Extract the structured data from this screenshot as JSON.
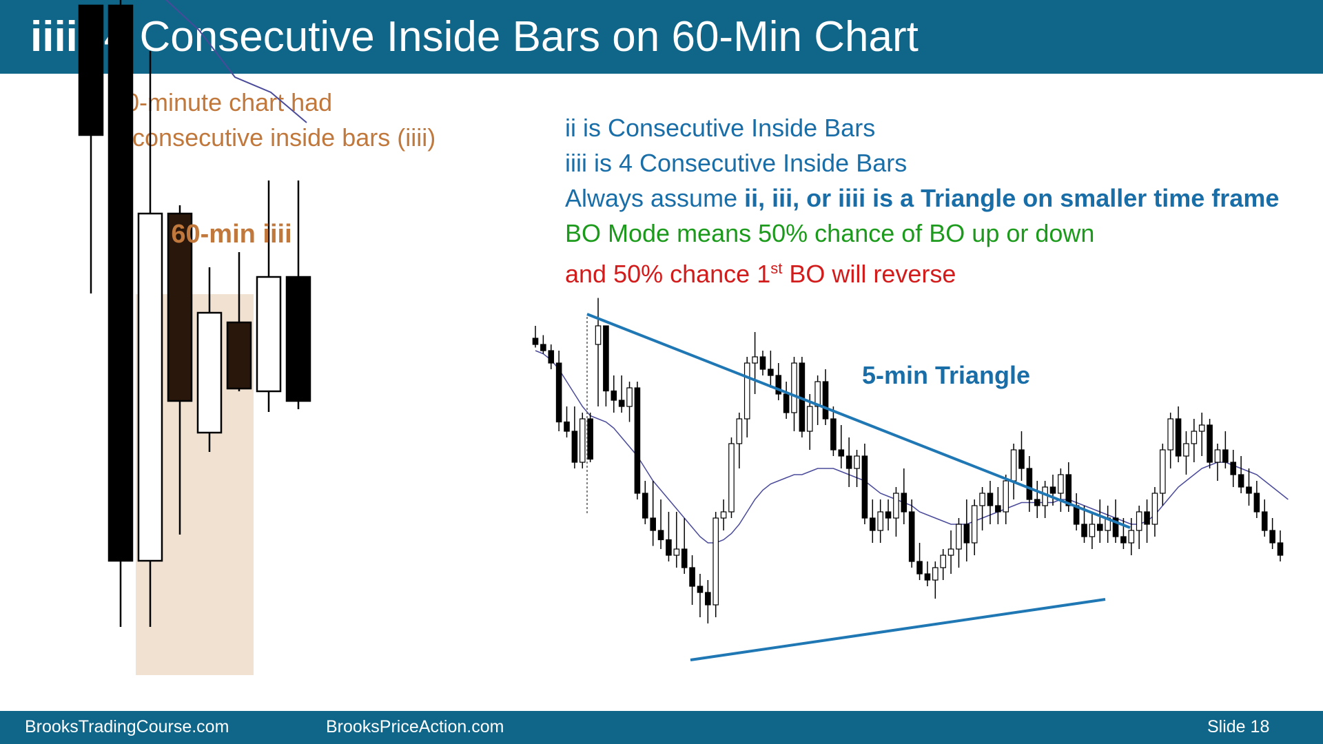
{
  "slide": {
    "title_prefix": "iiii:",
    "title_main": " 4 Consecutive Inside Bars on 60-Min Chart",
    "footer_left": "BrooksTradingCourse.com",
    "footer_middle": "BrooksPriceAction.com",
    "footer_right": "Slide  18"
  },
  "left_panel": {
    "caption_line1": "60-minute chart had",
    "caption_line2": "4 consecutive inside bars (iiii)",
    "label": "60-min iiii"
  },
  "right_panel": {
    "line1": "ii is Consecutive Inside Bars",
    "line2": "iiii is 4 Consecutive Inside Bars",
    "line3_normal": "Always assume ",
    "line3_bold": "ii, iii, or iiii is a Triangle on smaller time frame",
    "line4": "BO Mode means 50% chance of BO up or down",
    "line5_a": "and 50% chance 1",
    "line5_sup": "st",
    "line5_b": " BO will reverse",
    "triangle_label": "5-min Triangle"
  },
  "colors": {
    "header_bg": "#0f6688",
    "orange_text": "#c0783c",
    "blue_text": "#1a6ea8",
    "green_text": "#1c9a1c",
    "red_text": "#d21c1c",
    "highlight": "#f1e1d1",
    "triangle_line": "#1f77b4",
    "ema_line": "#4a4a9a"
  },
  "chart_data": [
    {
      "type": "candlestick",
      "timeframe": "60-min",
      "title": "60-min iiii",
      "bars": [
        {
          "o": 40.2,
          "h": 47.3,
          "l": 28.7,
          "c": 49.6,
          "color": "black"
        },
        {
          "o": 49.6,
          "h": 51.2,
          "l": 4.5,
          "c": 9.3,
          "color": "black"
        },
        {
          "o": 9.3,
          "h": 46.3,
          "l": 4.5,
          "c": 34.5,
          "color": "white"
        },
        {
          "o": 34.5,
          "h": 35.1,
          "l": 11.2,
          "c": 20.9,
          "color": "black"
        },
        {
          "o": 18.6,
          "h": 30.6,
          "l": 17.2,
          "c": 27.3,
          "color": "white"
        },
        {
          "o": 26.6,
          "h": 31.7,
          "l": 21.6,
          "c": 21.8,
          "color": "black"
        },
        {
          "o": 21.6,
          "h": 36.9,
          "l": 20.1,
          "c": 29.9,
          "color": "white"
        },
        {
          "o": 29.9,
          "h": 36.9,
          "l": 20.3,
          "c": 20.9,
          "color": "black"
        }
      ],
      "moving_average": [
        55.2,
        52.0,
        50.2,
        47.8,
        44.4,
        43.3,
        41.1
      ],
      "highlight_bars": [
        2,
        3,
        4,
        5
      ]
    },
    {
      "type": "candlestick",
      "timeframe": "5-min",
      "title": "5-min Triangle",
      "bars": [
        {
          "o": 82,
          "h": 86,
          "l": 79,
          "c": 80
        },
        {
          "o": 80,
          "h": 83,
          "l": 77,
          "c": 78
        },
        {
          "o": 78,
          "h": 80,
          "l": 72,
          "c": 74
        },
        {
          "o": 74,
          "h": 78,
          "l": 52,
          "c": 55
        },
        {
          "o": 55,
          "h": 60,
          "l": 50,
          "c": 52
        },
        {
          "o": 52,
          "h": 60,
          "l": 40,
          "c": 42
        },
        {
          "o": 42,
          "h": 58,
          "l": 40,
          "c": 56
        },
        {
          "o": 56,
          "h": 58,
          "l": 42,
          "c": 43
        },
        {
          "o": 80,
          "h": 95,
          "l": 60,
          "c": 86
        },
        {
          "o": 86,
          "h": 84,
          "l": 60,
          "c": 65
        },
        {
          "o": 65,
          "h": 70,
          "l": 58,
          "c": 62
        },
        {
          "o": 62,
          "h": 70,
          "l": 58,
          "c": 60
        },
        {
          "o": 60,
          "h": 68,
          "l": 55,
          "c": 66
        },
        {
          "o": 66,
          "h": 68,
          "l": 30,
          "c": 32
        },
        {
          "o": 32,
          "h": 36,
          "l": 22,
          "c": 24
        },
        {
          "o": 24,
          "h": 36,
          "l": 15,
          "c": 20
        },
        {
          "o": 20,
          "h": 30,
          "l": 14,
          "c": 17
        },
        {
          "o": 17,
          "h": 26,
          "l": 10,
          "c": 12
        },
        {
          "o": 12,
          "h": 26,
          "l": 8,
          "c": 14
        },
        {
          "o": 14,
          "h": 24,
          "l": 6,
          "c": 8
        },
        {
          "o": 8,
          "h": 12,
          "l": -4,
          "c": 2
        },
        {
          "o": 2,
          "h": 6,
          "l": -8,
          "c": 0
        },
        {
          "o": 0,
          "h": 4,
          "l": -10,
          "c": -4
        },
        {
          "o": -4,
          "h": 26,
          "l": -8,
          "c": 24
        },
        {
          "o": 24,
          "h": 30,
          "l": 20,
          "c": 26
        },
        {
          "o": 26,
          "h": 50,
          "l": 24,
          "c": 48
        },
        {
          "o": 48,
          "h": 58,
          "l": 40,
          "c": 56
        },
        {
          "o": 56,
          "h": 76,
          "l": 50,
          "c": 74
        },
        {
          "o": 74,
          "h": 84,
          "l": 64,
          "c": 76
        },
        {
          "o": 76,
          "h": 78,
          "l": 70,
          "c": 72
        },
        {
          "o": 72,
          "h": 78,
          "l": 66,
          "c": 70
        },
        {
          "o": 70,
          "h": 74,
          "l": 62,
          "c": 64
        },
        {
          "o": 64,
          "h": 68,
          "l": 56,
          "c": 58
        },
        {
          "o": 58,
          "h": 76,
          "l": 52,
          "c": 74
        },
        {
          "o": 74,
          "h": 76,
          "l": 50,
          "c": 52
        },
        {
          "o": 52,
          "h": 64,
          "l": 46,
          "c": 60
        },
        {
          "o": 60,
          "h": 70,
          "l": 54,
          "c": 68
        },
        {
          "o": 68,
          "h": 72,
          "l": 54,
          "c": 56
        },
        {
          "o": 56,
          "h": 60,
          "l": 44,
          "c": 46
        },
        {
          "o": 46,
          "h": 54,
          "l": 40,
          "c": 44
        },
        {
          "o": 44,
          "h": 50,
          "l": 34,
          "c": 40
        },
        {
          "o": 40,
          "h": 46,
          "l": 34,
          "c": 44
        },
        {
          "o": 44,
          "h": 48,
          "l": 22,
          "c": 24
        },
        {
          "o": 24,
          "h": 30,
          "l": 16,
          "c": 20
        },
        {
          "o": 20,
          "h": 30,
          "l": 16,
          "c": 26
        },
        {
          "o": 26,
          "h": 30,
          "l": 20,
          "c": 24
        },
        {
          "o": 24,
          "h": 34,
          "l": 18,
          "c": 32
        },
        {
          "o": 32,
          "h": 40,
          "l": 22,
          "c": 26
        },
        {
          "o": 26,
          "h": 30,
          "l": 8,
          "c": 10
        },
        {
          "o": 10,
          "h": 16,
          "l": 4,
          "c": 6
        },
        {
          "o": 6,
          "h": 10,
          "l": 2,
          "c": 4
        },
        {
          "o": 4,
          "h": 10,
          "l": -2,
          "c": 8
        },
        {
          "o": 8,
          "h": 14,
          "l": 4,
          "c": 12
        },
        {
          "o": 12,
          "h": 20,
          "l": 6,
          "c": 14
        },
        {
          "o": 14,
          "h": 24,
          "l": 8,
          "c": 22
        },
        {
          "o": 22,
          "h": 30,
          "l": 10,
          "c": 16
        },
        {
          "o": 16,
          "h": 30,
          "l": 12,
          "c": 28
        },
        {
          "o": 28,
          "h": 34,
          "l": 20,
          "c": 32
        },
        {
          "o": 32,
          "h": 36,
          "l": 22,
          "c": 28
        },
        {
          "o": 28,
          "h": 34,
          "l": 22,
          "c": 26
        },
        {
          "o": 26,
          "h": 38,
          "l": 22,
          "c": 36
        },
        {
          "o": 36,
          "h": 48,
          "l": 30,
          "c": 46
        },
        {
          "o": 46,
          "h": 52,
          "l": 36,
          "c": 40
        },
        {
          "o": 40,
          "h": 44,
          "l": 26,
          "c": 30
        },
        {
          "o": 30,
          "h": 36,
          "l": 24,
          "c": 28
        },
        {
          "o": 28,
          "h": 36,
          "l": 24,
          "c": 34
        },
        {
          "o": 34,
          "h": 38,
          "l": 28,
          "c": 32
        },
        {
          "o": 32,
          "h": 40,
          "l": 26,
          "c": 38
        },
        {
          "o": 38,
          "h": 42,
          "l": 26,
          "c": 28
        },
        {
          "o": 28,
          "h": 32,
          "l": 20,
          "c": 22
        },
        {
          "o": 22,
          "h": 28,
          "l": 16,
          "c": 18
        },
        {
          "o": 18,
          "h": 26,
          "l": 14,
          "c": 22
        },
        {
          "o": 22,
          "h": 30,
          "l": 16,
          "c": 20
        },
        {
          "o": 20,
          "h": 28,
          "l": 16,
          "c": 24
        },
        {
          "o": 24,
          "h": 30,
          "l": 16,
          "c": 18
        },
        {
          "o": 18,
          "h": 24,
          "l": 14,
          "c": 16
        },
        {
          "o": 16,
          "h": 24,
          "l": 12,
          "c": 20
        },
        {
          "o": 20,
          "h": 28,
          "l": 14,
          "c": 26
        },
        {
          "o": 26,
          "h": 30,
          "l": 16,
          "c": 22
        },
        {
          "o": 22,
          "h": 34,
          "l": 18,
          "c": 32
        },
        {
          "o": 32,
          "h": 48,
          "l": 28,
          "c": 46
        },
        {
          "o": 46,
          "h": 58,
          "l": 40,
          "c": 56
        },
        {
          "o": 56,
          "h": 60,
          "l": 42,
          "c": 44
        },
        {
          "o": 44,
          "h": 52,
          "l": 38,
          "c": 48
        },
        {
          "o": 48,
          "h": 56,
          "l": 42,
          "c": 52
        },
        {
          "o": 52,
          "h": 58,
          "l": 44,
          "c": 54
        },
        {
          "o": 54,
          "h": 56,
          "l": 40,
          "c": 42
        },
        {
          "o": 42,
          "h": 48,
          "l": 36,
          "c": 46
        },
        {
          "o": 46,
          "h": 52,
          "l": 40,
          "c": 42
        },
        {
          "o": 42,
          "h": 46,
          "l": 34,
          "c": 38
        },
        {
          "o": 38,
          "h": 44,
          "l": 32,
          "c": 34
        },
        {
          "o": 34,
          "h": 40,
          "l": 28,
          "c": 32
        },
        {
          "o": 32,
          "h": 36,
          "l": 24,
          "c": 26
        },
        {
          "o": 26,
          "h": 30,
          "l": 18,
          "c": 20
        },
        {
          "o": 20,
          "h": 24,
          "l": 14,
          "c": 16
        },
        {
          "o": 16,
          "h": 20,
          "l": 10,
          "c": 12
        }
      ],
      "moving_average": [
        78,
        77,
        75,
        72,
        68,
        64,
        60,
        57,
        56,
        55,
        53,
        50,
        47,
        44,
        40,
        36,
        33,
        30,
        27,
        24,
        21,
        18,
        16,
        16,
        17,
        19,
        22,
        26,
        30,
        33,
        35,
        36,
        37,
        38,
        38,
        39,
        40,
        40,
        40,
        39,
        38,
        37,
        36,
        34,
        32,
        31,
        30,
        29,
        28,
        26,
        25,
        24,
        23,
        22,
        22,
        22,
        23,
        24,
        25,
        26,
        27,
        28,
        29,
        29,
        29,
        29,
        29,
        30,
        30,
        29,
        28,
        27,
        26,
        25,
        24,
        23,
        22,
        22,
        23,
        25,
        28,
        31,
        34,
        36,
        38,
        40,
        41,
        42,
        42,
        41,
        40,
        39,
        38,
        36,
        34,
        32,
        30
      ],
      "triangle": {
        "upper": "descending trendline from the early high",
        "lower": "ascending trendline from the early low"
      }
    }
  ]
}
